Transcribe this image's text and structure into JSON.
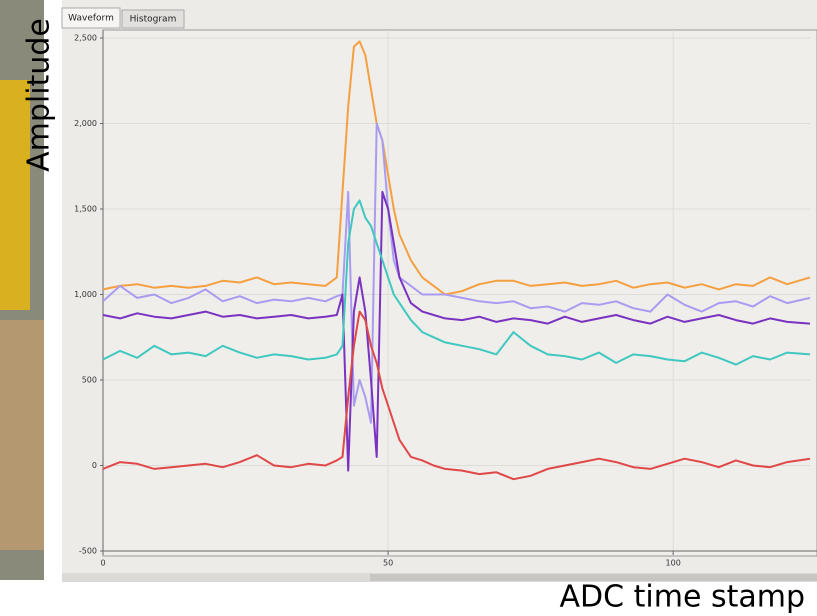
{
  "tabs": [
    "Waveform",
    "Histogram"
  ],
  "chart_data": {
    "type": "line",
    "ylabel": "Amplitude",
    "xlabel": "ADC time stamp",
    "x": [
      0,
      3,
      6,
      9,
      12,
      15,
      18,
      21,
      24,
      27,
      30,
      33,
      36,
      39,
      41,
      42,
      43,
      44,
      45,
      46,
      47,
      48,
      49,
      50,
      51,
      52,
      54,
      56,
      58,
      60,
      63,
      66,
      69,
      72,
      75,
      78,
      81,
      84,
      87,
      90,
      93,
      96,
      99,
      102,
      105,
      108,
      111,
      114,
      117,
      120,
      124
    ],
    "series": [
      {
        "color": "#f5a040",
        "values": [
          1030,
          1050,
          1060,
          1040,
          1050,
          1040,
          1050,
          1080,
          1070,
          1100,
          1060,
          1070,
          1060,
          1050,
          1100,
          1600,
          2100,
          2450,
          2480,
          2400,
          2200,
          2000,
          1900,
          1700,
          1500,
          1350,
          1200,
          1100,
          1050,
          1000,
          1020,
          1060,
          1080,
          1080,
          1050,
          1060,
          1070,
          1050,
          1060,
          1080,
          1040,
          1060,
          1070,
          1040,
          1060,
          1030,
          1060,
          1050,
          1100,
          1060,
          1100
        ]
      },
      {
        "color": "#a99cf0",
        "values": [
          960,
          1050,
          980,
          1000,
          950,
          980,
          1030,
          960,
          990,
          950,
          970,
          960,
          980,
          960,
          990,
          1000,
          1600,
          350,
          500,
          400,
          250,
          2000,
          1900,
          1500,
          1200,
          1100,
          1050,
          1000,
          1000,
          1000,
          980,
          960,
          950,
          960,
          920,
          930,
          900,
          950,
          940,
          960,
          920,
          900,
          1000,
          940,
          900,
          950,
          960,
          930,
          990,
          950,
          980
        ]
      },
      {
        "color": "#7a32c0",
        "values": [
          880,
          860,
          890,
          870,
          860,
          880,
          900,
          870,
          880,
          860,
          870,
          880,
          860,
          870,
          880,
          1000,
          -30,
          900,
          1100,
          900,
          500,
          50,
          1600,
          1500,
          1300,
          1100,
          950,
          900,
          880,
          860,
          850,
          870,
          840,
          860,
          850,
          830,
          870,
          840,
          860,
          880,
          850,
          830,
          870,
          840,
          860,
          880,
          850,
          830,
          860,
          840,
          830
        ]
      },
      {
        "color": "#40c8c0",
        "values": [
          620,
          670,
          630,
          700,
          650,
          660,
          640,
          700,
          660,
          630,
          650,
          640,
          620,
          630,
          650,
          700,
          1300,
          1500,
          1550,
          1450,
          1400,
          1300,
          1200,
          1100,
          1000,
          950,
          850,
          780,
          750,
          720,
          700,
          680,
          650,
          780,
          700,
          650,
          640,
          620,
          660,
          600,
          650,
          640,
          620,
          610,
          660,
          630,
          590,
          640,
          620,
          660,
          650
        ]
      },
      {
        "color": "#e04848",
        "values": [
          -20,
          20,
          10,
          -20,
          -10,
          0,
          10,
          -10,
          20,
          60,
          0,
          -10,
          10,
          0,
          30,
          50,
          400,
          700,
          900,
          850,
          700,
          600,
          450,
          350,
          250,
          150,
          50,
          30,
          0,
          -20,
          -30,
          -50,
          -40,
          -80,
          -60,
          -20,
          0,
          20,
          40,
          20,
          -10,
          -20,
          10,
          40,
          20,
          -10,
          30,
          0,
          -10,
          20,
          40
        ]
      }
    ],
    "xlim": [
      0,
      124
    ],
    "ylim": [
      -500,
      2500
    ],
    "xticks": [
      0,
      50,
      100
    ],
    "yticks": [
      -500,
      0,
      500,
      {
        "value": 1000,
        "label": "1,000"
      },
      {
        "value": 1500,
        "label": "1,500"
      },
      {
        "value": 2000,
        "label": "2,000"
      },
      {
        "value": 2500,
        "label": "2,500"
      }
    ],
    "grid": true
  }
}
